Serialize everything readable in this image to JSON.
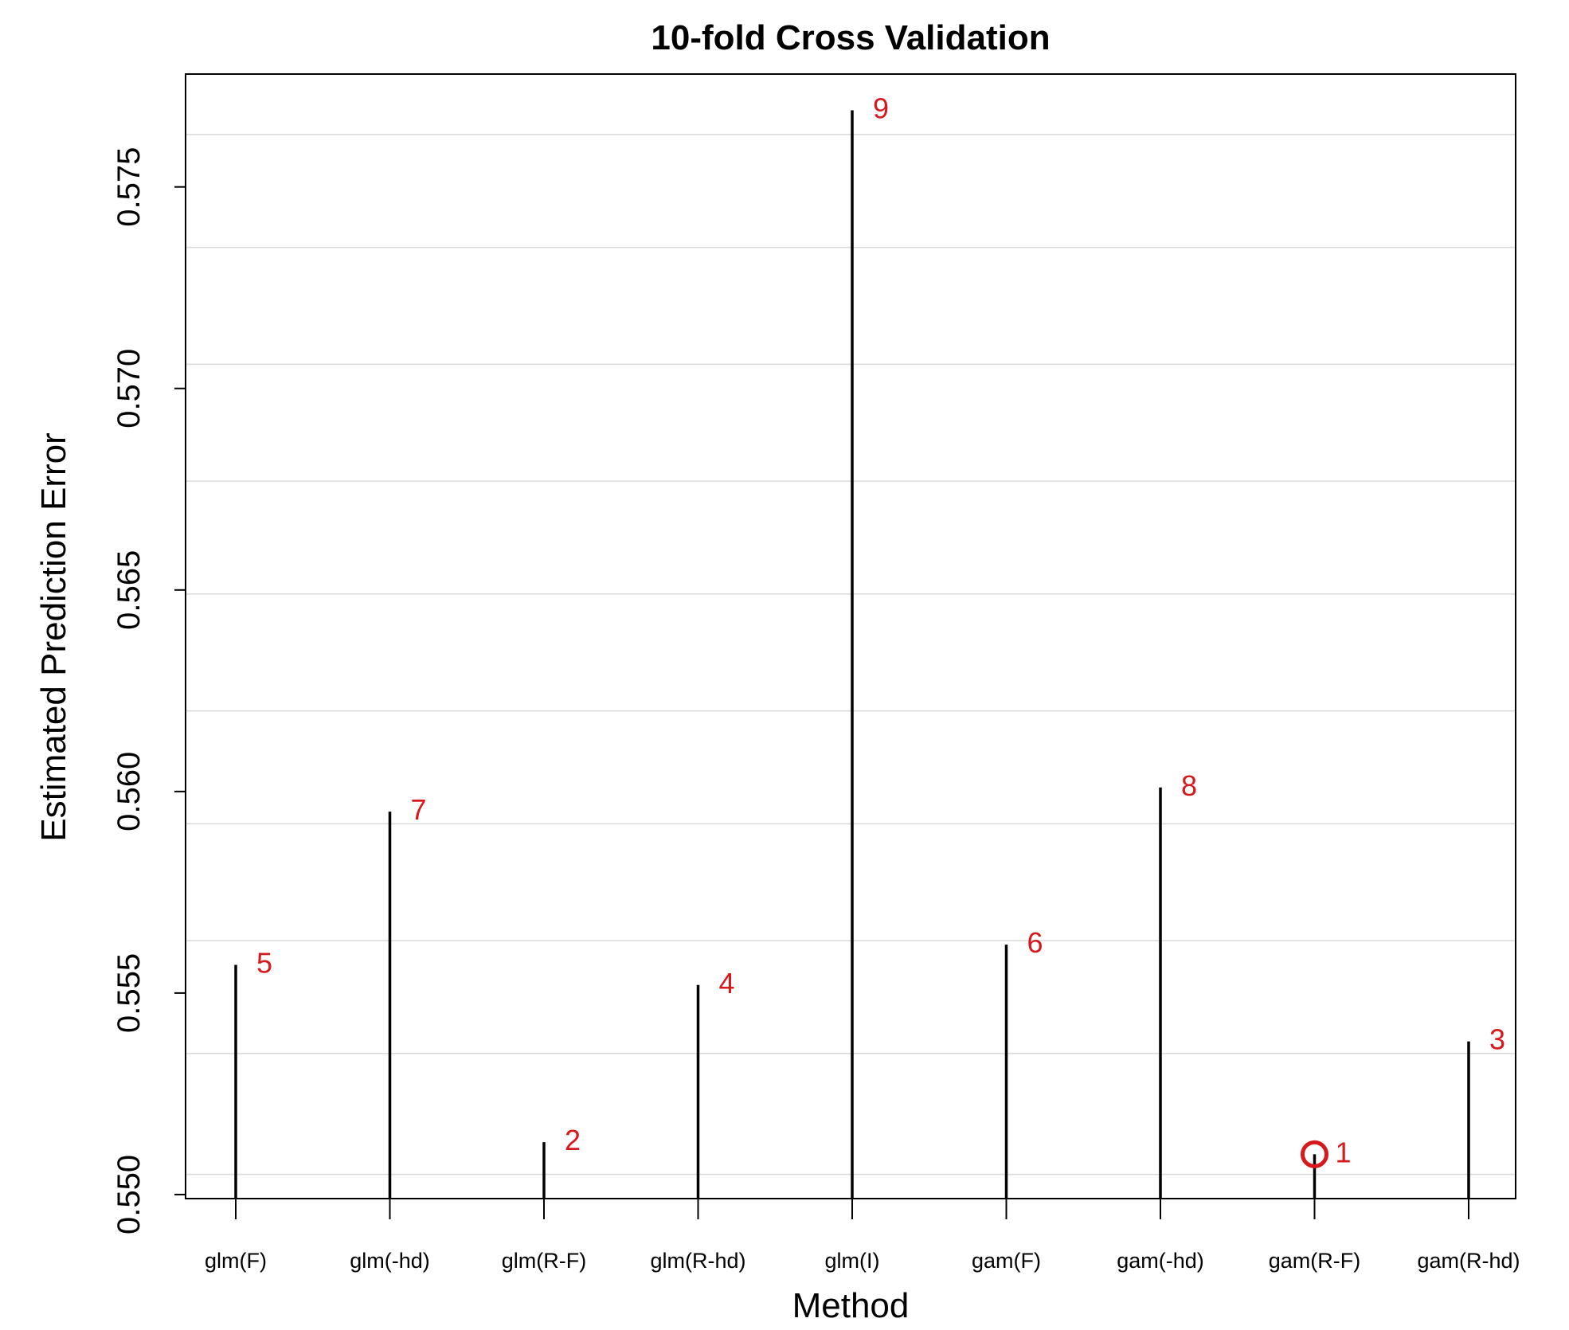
{
  "chart_data": {
    "type": "bar",
    "title": "10-fold Cross Validation",
    "xlabel": "Method",
    "ylabel": "Estimated Prediction Error",
    "categories": [
      "glm(F)",
      "glm(-hd)",
      "glm(R-F)",
      "glm(R-hd)",
      "glm(I)",
      "gam(F)",
      "gam(-hd)",
      "gam(R-F)",
      "gam(R-hd)"
    ],
    "values": [
      0.5557,
      0.5595,
      0.5513,
      0.5552,
      0.5769,
      0.5562,
      0.5601,
      0.551,
      0.5538
    ],
    "ranks": [
      "5",
      "7",
      "2",
      "4",
      "9",
      "6",
      "8",
      "1",
      "3"
    ],
    "ylim": [
      0.5499,
      0.5778
    ],
    "yticks": [
      "0.550",
      "0.555",
      "0.560",
      "0.565",
      "0.570",
      "0.575"
    ],
    "ytick_values": [
      0.55,
      0.555,
      0.56,
      0.565,
      0.57,
      0.575
    ],
    "grid": true,
    "gridlines": [
      0.5505,
      0.5535,
      0.5563,
      0.5592,
      0.562,
      0.5649,
      0.5677,
      0.5706,
      0.5735,
      0.5763
    ],
    "highlight": {
      "category": "gam(R-F)",
      "marker": "open circle"
    },
    "colors": {
      "bars": "#000000",
      "labels": "#d7191c",
      "grid": "#d9d9d9",
      "frame": "#000000"
    }
  }
}
